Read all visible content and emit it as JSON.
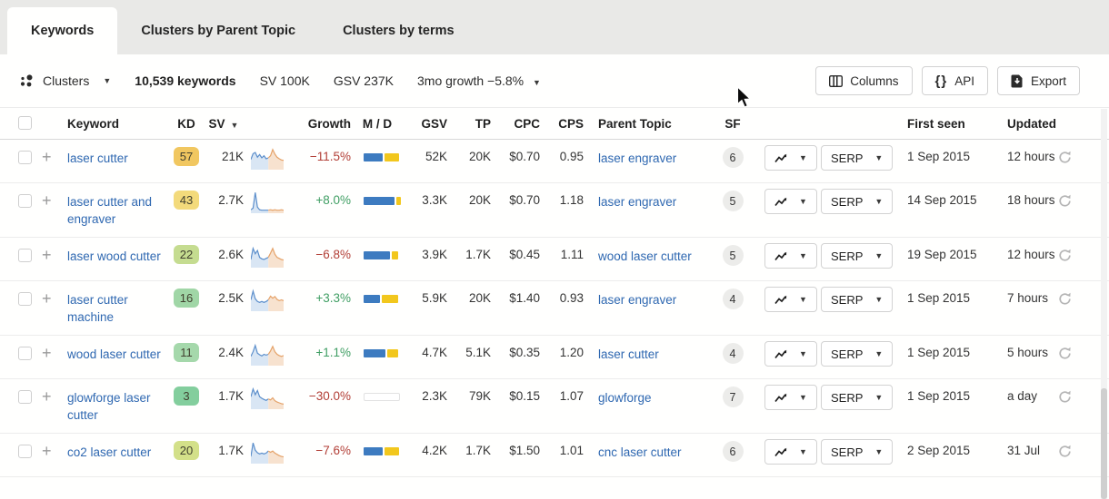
{
  "tabs": {
    "items": [
      {
        "label": "Keywords",
        "active": true
      },
      {
        "label": "Clusters by Parent Topic",
        "active": false
      },
      {
        "label": "Clusters by terms",
        "active": false
      }
    ]
  },
  "toolbar": {
    "clusters_label": "Clusters",
    "keywords_count": "10,539 keywords",
    "sv_total": "SV 100K",
    "gsv_total": "GSV 237K",
    "growth_summary": "3mo growth −5.8%",
    "columns_label": "Columns",
    "api_label": "API",
    "export_label": "Export"
  },
  "table": {
    "headers": {
      "keyword": "Keyword",
      "kd": "KD",
      "sv": "SV",
      "growth": "Growth",
      "md": "M / D",
      "gsv": "GSV",
      "tp": "TP",
      "cpc": "CPC",
      "cps": "CPS",
      "parent_topic": "Parent Topic",
      "sf": "SF",
      "first_seen": "First seen",
      "updated": "Updated"
    },
    "serp_label": "SERP",
    "spark_split": 8,
    "rows": [
      {
        "keyword": "laser cutter",
        "kd": "57",
        "kd_color": "#f1c760",
        "sv": "21K",
        "growth": "−11.5%",
        "dir": "neg",
        "md": [
          0.52,
          0.4
        ],
        "gsv": "52K",
        "tp": "20K",
        "cpc": "$0.70",
        "cps": "0.95",
        "parent_topic": "laser engraver",
        "sf": "6",
        "first_seen": "1 Sep 2015",
        "updated": "12 hours",
        "spark": [
          0.45,
          0.72,
          0.78,
          0.55,
          0.68,
          0.52,
          0.62,
          0.48,
          0.52,
          0.62,
          0.92,
          0.7,
          0.55,
          0.48,
          0.42,
          0.4
        ]
      },
      {
        "keyword": "laser cutter and engraver",
        "kd": "43",
        "kd_color": "#f3da7b",
        "sv": "2.7K",
        "growth": "+8.0%",
        "dir": "pos",
        "md": [
          0.84,
          0.13
        ],
        "gsv": "3.3K",
        "tp": "20K",
        "cpc": "$0.70",
        "cps": "1.18",
        "parent_topic": "laser engraver",
        "sf": "5",
        "first_seen": "14 Sep 2015",
        "updated": "18 hours",
        "spark": [
          0.12,
          0.2,
          0.95,
          0.25,
          0.12,
          0.1,
          0.1,
          0.1,
          0.1,
          0.12,
          0.1,
          0.12,
          0.1,
          0.1,
          0.12,
          0.1
        ]
      },
      {
        "keyword": "laser wood cutter",
        "kd": "22",
        "kd_color": "#c5dc90",
        "sv": "2.6K",
        "growth": "−6.8%",
        "dir": "neg",
        "md": [
          0.72,
          0.18
        ],
        "gsv": "3.9K",
        "tp": "1.7K",
        "cpc": "$0.45",
        "cps": "1.11",
        "parent_topic": "wood laser cutter",
        "sf": "5",
        "first_seen": "19 Sep 2015",
        "updated": "12 hours",
        "spark": [
          0.35,
          0.88,
          0.62,
          0.78,
          0.45,
          0.38,
          0.35,
          0.4,
          0.45,
          0.65,
          0.88,
          0.6,
          0.45,
          0.4,
          0.35,
          0.32
        ]
      },
      {
        "keyword": "laser cutter machine",
        "kd": "16",
        "kd_color": "#a0d6a6",
        "sv": "2.5K",
        "growth": "+3.3%",
        "dir": "pos",
        "md": [
          0.46,
          0.44
        ],
        "gsv": "5.9K",
        "tp": "20K",
        "cpc": "$1.40",
        "cps": "0.93",
        "parent_topic": "laser engraver",
        "sf": "4",
        "first_seen": "1 Sep 2015",
        "updated": "7 hours",
        "spark": [
          0.5,
          0.92,
          0.55,
          0.42,
          0.38,
          0.42,
          0.38,
          0.42,
          0.5,
          0.68,
          0.58,
          0.66,
          0.52,
          0.46,
          0.5,
          0.46
        ]
      },
      {
        "keyword": "wood laser cutter",
        "kd": "11",
        "kd_color": "#a5d8ab",
        "sv": "2.4K",
        "growth": "+1.1%",
        "dir": "pos",
        "md": [
          0.6,
          0.3
        ],
        "gsv": "4.7K",
        "tp": "5.1K",
        "cpc": "$0.35",
        "cps": "1.20",
        "parent_topic": "laser cutter",
        "sf": "4",
        "first_seen": "1 Sep 2015",
        "updated": "5 hours",
        "spark": [
          0.4,
          0.62,
          0.92,
          0.55,
          0.48,
          0.42,
          0.5,
          0.46,
          0.5,
          0.66,
          0.88,
          0.62,
          0.5,
          0.44,
          0.4,
          0.44
        ]
      },
      {
        "keyword": "glowforge laser cutter",
        "kd": "3",
        "kd_color": "#83ce9d",
        "sv": "1.7K",
        "growth": "−30.0%",
        "dir": "neg",
        "md": null,
        "gsv": "2.3K",
        "tp": "79K",
        "cpc": "$0.15",
        "cps": "1.07",
        "parent_topic": "glowforge",
        "sf": "7",
        "first_seen": "1 Sep 2015",
        "updated": "a day",
        "spark": [
          0.55,
          0.92,
          0.65,
          0.85,
          0.55,
          0.48,
          0.42,
          0.38,
          0.45,
          0.4,
          0.5,
          0.36,
          0.3,
          0.26,
          0.22,
          0.2
        ]
      },
      {
        "keyword": "co2 laser cutter",
        "kd": "20",
        "kd_color": "#d3e089",
        "sv": "1.7K",
        "growth": "−7.6%",
        "dir": "neg",
        "md": [
          0.52,
          0.4
        ],
        "gsv": "4.2K",
        "tp": "1.7K",
        "cpc": "$1.50",
        "cps": "1.01",
        "parent_topic": "cnc laser cutter",
        "sf": "6",
        "first_seen": "2 Sep 2015",
        "updated": "31 Jul",
        "spark": [
          0.3,
          0.95,
          0.6,
          0.48,
          0.42,
          0.46,
          0.42,
          0.46,
          0.56,
          0.5,
          0.56,
          0.46,
          0.4,
          0.34,
          0.3,
          0.28
        ]
      }
    ]
  },
  "colors": {
    "md_blue": "#3d7bc0",
    "md_yellow": "#f2c71d",
    "spark_blue_stroke": "#5b8ecb",
    "spark_blue_fill": "#d9e6f4",
    "spark_orange_stroke": "#e5a268",
    "spark_orange_fill": "#f7e2cf",
    "link_blue": "#2f68b1",
    "negative_red": "#b23e36",
    "positive_green": "#3f9e63"
  }
}
